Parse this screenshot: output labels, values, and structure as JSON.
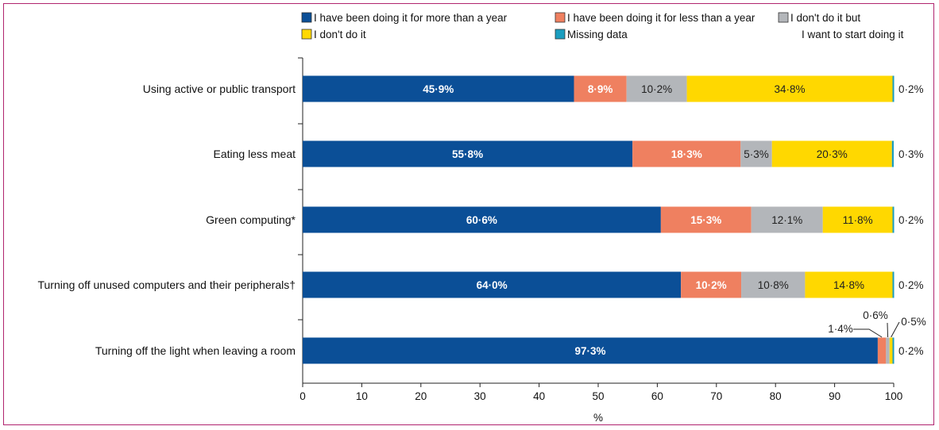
{
  "chart_data": {
    "type": "bar",
    "orientation": "horizontal",
    "stacked": true,
    "xlabel": "%",
    "xlim": [
      0,
      100
    ],
    "xticks": [
      0,
      10,
      20,
      30,
      40,
      50,
      60,
      70,
      80,
      90,
      100
    ],
    "legend_position": "top",
    "categories": [
      "Using active or public transport",
      "Eating less meat",
      "Green computing*",
      "Turning off unused computers and their peripherals†",
      "Turning off the light when leaving a room"
    ],
    "series": [
      {
        "name": "I have been doing it for more than a year",
        "color": "#0b4f97",
        "text_color": "#ffffff",
        "values": [
          45.9,
          55.8,
          60.6,
          64.0,
          97.3
        ],
        "labels": [
          "45·9%",
          "55·8%",
          "60·6%",
          "64·0%",
          "97·3%"
        ]
      },
      {
        "name": "I have been doing it for less than a year",
        "color": "#ef8060",
        "text_color": "#ffffff",
        "values": [
          8.9,
          18.3,
          15.3,
          10.2,
          1.4
        ],
        "labels": [
          "8·9%",
          "18·3%",
          "15·3%",
          "10·2%",
          "1·4%"
        ]
      },
      {
        "name": "I don't do it but I want to start doing it",
        "name_lines": [
          "I don't do it but",
          "I want to start doing it"
        ],
        "color": "#b3b6ba",
        "text_color": "#222222",
        "values": [
          10.2,
          5.3,
          12.1,
          10.8,
          0.6
        ],
        "labels": [
          "10·2%",
          "5·3%",
          "12·1%",
          "10·8%",
          "0·6%"
        ]
      },
      {
        "name": "I don't do it",
        "color": "#ffd800",
        "text_color": "#222222",
        "values": [
          34.8,
          20.3,
          11.8,
          14.8,
          0.5
        ],
        "labels": [
          "34·8%",
          "20·3%",
          "11·8%",
          "14·8%",
          "0·5%"
        ]
      },
      {
        "name": "Missing data",
        "color": "#1a9dbf",
        "text_color": "#222222",
        "values": [
          0.2,
          0.3,
          0.2,
          0.2,
          0.2
        ],
        "labels": [
          "0·2%",
          "0·3%",
          "0·2%",
          "0·2%",
          "0·2%"
        ]
      }
    ],
    "x_tick_labels": [
      "0",
      "10",
      "20",
      "30",
      "40",
      "50",
      "60",
      "70",
      "80",
      "90",
      "100"
    ]
  }
}
